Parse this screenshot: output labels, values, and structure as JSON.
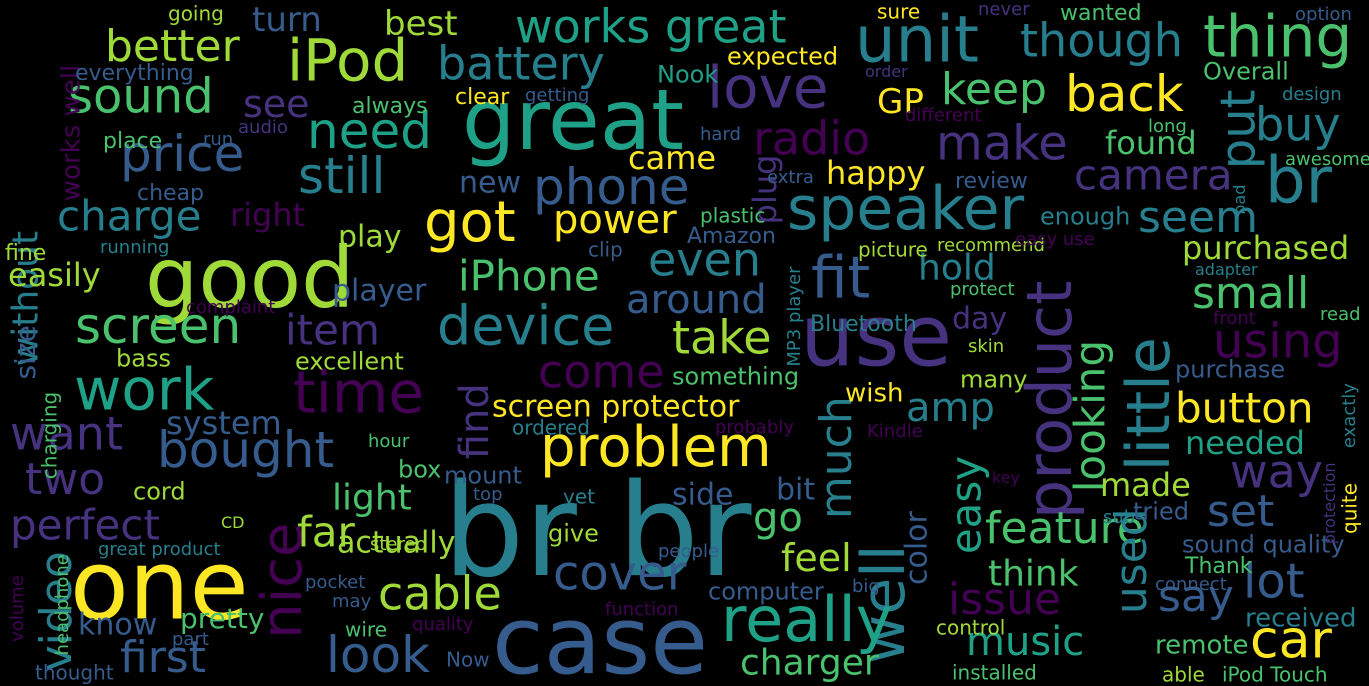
{
  "palette": [
    "#440154",
    "#46327e",
    "#365c8d",
    "#277f8e",
    "#1fa187",
    "#4ac16d",
    "#a0da39",
    "#fde725"
  ],
  "words": [
    {
      "text": "br br",
      "color": "#277f8e"
    },
    {
      "text": "case",
      "color": "#365c8d"
    },
    {
      "text": "one",
      "color": "#fde725"
    },
    {
      "text": "great",
      "color": "#1fa187"
    },
    {
      "text": "good",
      "color": "#a0da39"
    },
    {
      "text": "use",
      "color": "#46327e"
    },
    {
      "text": "work",
      "color": "#1fa187"
    },
    {
      "text": "time",
      "color": "#440154"
    },
    {
      "text": "problem",
      "color": "#fde725"
    },
    {
      "text": "speaker",
      "color": "#277f8e"
    },
    {
      "text": "well",
      "color": "#277f8e"
    },
    {
      "text": "device",
      "color": "#277f8e"
    },
    {
      "text": "really",
      "color": "#1fa187"
    },
    {
      "text": "product",
      "color": "#46327e"
    },
    {
      "text": "little",
      "color": "#277f8e"
    },
    {
      "text": "unit",
      "color": "#277f8e"
    },
    {
      "text": "br",
      "color": "#277f8e"
    },
    {
      "text": "thing",
      "color": "#4ac16d"
    },
    {
      "text": "iPod",
      "color": "#a0da39"
    },
    {
      "text": "love",
      "color": "#46327e"
    },
    {
      "text": "works great",
      "color": "#1fa187"
    },
    {
      "text": "though",
      "color": "#277f8e"
    },
    {
      "text": "nice",
      "color": "#440154"
    },
    {
      "text": "got",
      "color": "#fde725"
    },
    {
      "text": "bought",
      "color": "#365c8d"
    },
    {
      "text": "phone",
      "color": "#365c8d"
    },
    {
      "text": "price",
      "color": "#365c8d"
    },
    {
      "text": "sound",
      "color": "#4ac16d"
    },
    {
      "text": "still",
      "color": "#277f8e"
    },
    {
      "text": "need",
      "color": "#1fa187"
    },
    {
      "text": "screen",
      "color": "#4ac16d"
    },
    {
      "text": "cover",
      "color": "#365c8d"
    },
    {
      "text": "fit",
      "color": "#365c8d"
    },
    {
      "text": "back",
      "color": "#fde725"
    },
    {
      "text": "car",
      "color": "#fde725"
    },
    {
      "text": "battery",
      "color": "#277f8e"
    },
    {
      "text": "radio",
      "color": "#440154"
    },
    {
      "text": "make",
      "color": "#46327e"
    },
    {
      "text": "even",
      "color": "#277f8e"
    },
    {
      "text": "come",
      "color": "#440154"
    },
    {
      "text": "look",
      "color": "#365c8d"
    },
    {
      "text": "lot",
      "color": "#365c8d"
    },
    {
      "text": "better",
      "color": "#a0da39"
    },
    {
      "text": "keep",
      "color": "#4ac16d"
    },
    {
      "text": "put",
      "color": "#277f8e"
    },
    {
      "text": "camera",
      "color": "#46327e"
    },
    {
      "text": "buy",
      "color": "#277f8e"
    },
    {
      "text": "charge",
      "color": "#277f8e"
    },
    {
      "text": "want",
      "color": "#46327e"
    },
    {
      "text": "two",
      "color": "#46327e"
    },
    {
      "text": "perfect",
      "color": "#46327e"
    },
    {
      "text": "first",
      "color": "#365c8d"
    },
    {
      "text": "video",
      "color": "#277f8e"
    },
    {
      "text": "iPhone",
      "color": "#4ac16d"
    },
    {
      "text": "power",
      "color": "#fde725"
    },
    {
      "text": "take",
      "color": "#a0da39"
    },
    {
      "text": "item",
      "color": "#46327e"
    },
    {
      "text": "around",
      "color": "#365c8d"
    },
    {
      "text": "much",
      "color": "#277f8e"
    },
    {
      "text": "easy",
      "color": "#1fa187"
    },
    {
      "text": "looking",
      "color": "#4ac16d"
    },
    {
      "text": "feature",
      "color": "#4ac16d"
    },
    {
      "text": "used",
      "color": "#277f8e"
    },
    {
      "text": "cable",
      "color": "#a0da39"
    },
    {
      "text": "issue",
      "color": "#440154"
    },
    {
      "text": "music",
      "color": "#1fa187"
    },
    {
      "text": "button",
      "color": "#fde725"
    },
    {
      "text": "way",
      "color": "#46327e"
    },
    {
      "text": "small",
      "color": "#4ac16d"
    },
    {
      "text": "seem",
      "color": "#277f8e"
    },
    {
      "text": "using",
      "color": "#440154"
    },
    {
      "text": "say",
      "color": "#365c8d"
    },
    {
      "text": "set",
      "color": "#365c8d"
    },
    {
      "text": "screen protector",
      "color": "#fde725"
    },
    {
      "text": "charger",
      "color": "#4ac16d"
    },
    {
      "text": "without",
      "color": "#277f8e"
    },
    {
      "text": "see",
      "color": "#46327e"
    },
    {
      "text": "far",
      "color": "#a0da39"
    },
    {
      "text": "go",
      "color": "#4ac16d"
    },
    {
      "text": "find",
      "color": "#46327e"
    },
    {
      "text": "feel",
      "color": "#a0da39"
    },
    {
      "text": "amp",
      "color": "#277f8e"
    },
    {
      "text": "hold",
      "color": "#277f8e"
    },
    {
      "text": "light",
      "color": "#4ac16d"
    },
    {
      "text": "think",
      "color": "#4ac16d"
    },
    {
      "text": "purchased",
      "color": "#a0da39"
    },
    {
      "text": "turn",
      "color": "#365c8d"
    },
    {
      "text": "best",
      "color": "#a0da39"
    },
    {
      "text": "GP",
      "color": "#fde725"
    },
    {
      "text": "happy",
      "color": "#fde725"
    },
    {
      "text": "came",
      "color": "#fde725"
    },
    {
      "text": "found",
      "color": "#4ac16d"
    },
    {
      "text": "new",
      "color": "#365c8d"
    },
    {
      "text": "right",
      "color": "#440154"
    },
    {
      "text": "play",
      "color": "#a0da39"
    },
    {
      "text": "player",
      "color": "#365c8d"
    },
    {
      "text": "easily",
      "color": "#a0da39"
    },
    {
      "text": "size",
      "color": "#365c8d"
    },
    {
      "text": "works well",
      "color": "#440154"
    },
    {
      "text": "know",
      "color": "#365c8d"
    },
    {
      "text": "pretty",
      "color": "#4ac16d"
    },
    {
      "text": "system",
      "color": "#365c8d"
    },
    {
      "text": "made",
      "color": "#a0da39"
    },
    {
      "text": "bit",
      "color": "#365c8d"
    },
    {
      "text": "side",
      "color": "#365c8d"
    },
    {
      "text": "color",
      "color": "#365c8d"
    },
    {
      "text": "day",
      "color": "#46327e"
    },
    {
      "text": "needed",
      "color": "#1fa187"
    },
    {
      "text": "plug",
      "color": "#46327e"
    },
    {
      "text": "actually",
      "color": "#a0da39"
    },
    {
      "text": "mount",
      "color": "#365c8d"
    },
    {
      "text": "cord",
      "color": "#a0da39"
    },
    {
      "text": "excellent",
      "color": "#a0da39"
    },
    {
      "text": "something",
      "color": "#4ac16d"
    },
    {
      "text": "many",
      "color": "#a0da39"
    },
    {
      "text": "wish",
      "color": "#fde725"
    },
    {
      "text": "remote",
      "color": "#4ac16d"
    },
    {
      "text": "received",
      "color": "#277f8e"
    },
    {
      "text": "sound quality",
      "color": "#365c8d"
    },
    {
      "text": "purchase",
      "color": "#365c8d"
    },
    {
      "text": "tried",
      "color": "#365c8d"
    },
    {
      "text": "computer",
      "color": "#365c8d"
    },
    {
      "text": "give",
      "color": "#a0da39"
    },
    {
      "text": "box",
      "color": "#4ac16d"
    },
    {
      "text": "ordered",
      "color": "#277f8e"
    },
    {
      "text": "review",
      "color": "#365c8d"
    },
    {
      "text": "enough",
      "color": "#277f8e"
    },
    {
      "text": "Overall",
      "color": "#4ac16d"
    },
    {
      "text": "Nook",
      "color": "#1fa187"
    },
    {
      "text": "wanted",
      "color": "#4ac16d"
    },
    {
      "text": "expected",
      "color": "#fde725"
    },
    {
      "text": "sure",
      "color": "#fde725"
    },
    {
      "text": "always",
      "color": "#4ac16d"
    },
    {
      "text": "clear",
      "color": "#fde725"
    },
    {
      "text": "getting",
      "color": "#365c8d"
    },
    {
      "text": "everything",
      "color": "#365c8d"
    },
    {
      "text": "going",
      "color": "#a0da39"
    },
    {
      "text": "place",
      "color": "#4ac16d"
    },
    {
      "text": "run",
      "color": "#365c8d"
    },
    {
      "text": "audio",
      "color": "#46327e"
    },
    {
      "text": "hard",
      "color": "#365c8d"
    },
    {
      "text": "different",
      "color": "#440154"
    },
    {
      "text": "order",
      "color": "#46327e"
    },
    {
      "text": "never",
      "color": "#46327e"
    },
    {
      "text": "option",
      "color": "#365c8d"
    },
    {
      "text": "design",
      "color": "#277f8e"
    },
    {
      "text": "long",
      "color": "#4ac16d"
    },
    {
      "text": "awesome",
      "color": "#4ac16d"
    },
    {
      "text": "bad",
      "color": "#277f8e"
    },
    {
      "text": "cheap",
      "color": "#365c8d"
    },
    {
      "text": "extra",
      "color": "#365c8d"
    },
    {
      "text": "fine",
      "color": "#a0da39"
    },
    {
      "text": "running",
      "color": "#277f8e"
    },
    {
      "text": "Amazon",
      "color": "#365c8d"
    },
    {
      "text": "clip",
      "color": "#365c8d"
    },
    {
      "text": "plastic",
      "color": "#4ac16d"
    },
    {
      "text": "picture",
      "color": "#a0da39"
    },
    {
      "text": "recommend",
      "color": "#a0da39"
    },
    {
      "text": "easy use",
      "color": "#440154"
    },
    {
      "text": "adapter",
      "color": "#277f8e"
    },
    {
      "text": "protect",
      "color": "#4ac16d"
    },
    {
      "text": "complaint",
      "color": "#440154"
    },
    {
      "text": "Bluetooth",
      "color": "#277f8e"
    },
    {
      "text": "MP3 player",
      "color": "#277f8e"
    },
    {
      "text": "front",
      "color": "#440154"
    },
    {
      "text": "read",
      "color": "#4ac16d"
    },
    {
      "text": "skin",
      "color": "#a0da39"
    },
    {
      "text": "bass",
      "color": "#a0da39"
    },
    {
      "text": "charging",
      "color": "#4ac16d"
    },
    {
      "text": "hour",
      "color": "#4ac16d"
    },
    {
      "text": "probably",
      "color": "#440154"
    },
    {
      "text": "Kindle",
      "color": "#440154"
    },
    {
      "text": "exactly",
      "color": "#277f8e"
    },
    {
      "text": "quite",
      "color": "#fde725"
    },
    {
      "text": "protection",
      "color": "#46327e"
    },
    {
      "text": "key",
      "color": "#440154"
    },
    {
      "text": "top",
      "color": "#365c8d"
    },
    {
      "text": "yet",
      "color": "#277f8e"
    },
    {
      "text": "sub",
      "color": "#277f8e"
    },
    {
      "text": "CD",
      "color": "#a0da39"
    },
    {
      "text": "great product",
      "color": "#277f8e"
    },
    {
      "text": "stereo",
      "color": "#a0da39"
    },
    {
      "text": "people",
      "color": "#365c8d"
    },
    {
      "text": "Thank",
      "color": "#4ac16d"
    },
    {
      "text": "connect",
      "color": "#365c8d"
    },
    {
      "text": "volume",
      "color": "#440154"
    },
    {
      "text": "headphone",
      "color": "#4ac16d"
    },
    {
      "text": "pocket",
      "color": "#365c8d"
    },
    {
      "text": "big",
      "color": "#365c8d"
    },
    {
      "text": "function",
      "color": "#440154"
    },
    {
      "text": "may",
      "color": "#365c8d"
    },
    {
      "text": "part",
      "color": "#365c8d"
    },
    {
      "text": "quality",
      "color": "#440154"
    },
    {
      "text": "wire",
      "color": "#4ac16d"
    },
    {
      "text": "control",
      "color": "#a0da39"
    },
    {
      "text": "thought",
      "color": "#365c8d"
    },
    {
      "text": "Now",
      "color": "#365c8d"
    },
    {
      "text": "installed",
      "color": "#4ac16d"
    },
    {
      "text": "able",
      "color": "#a0da39"
    },
    {
      "text": "iPod Touch",
      "color": "#4ac16d"
    }
  ]
}
